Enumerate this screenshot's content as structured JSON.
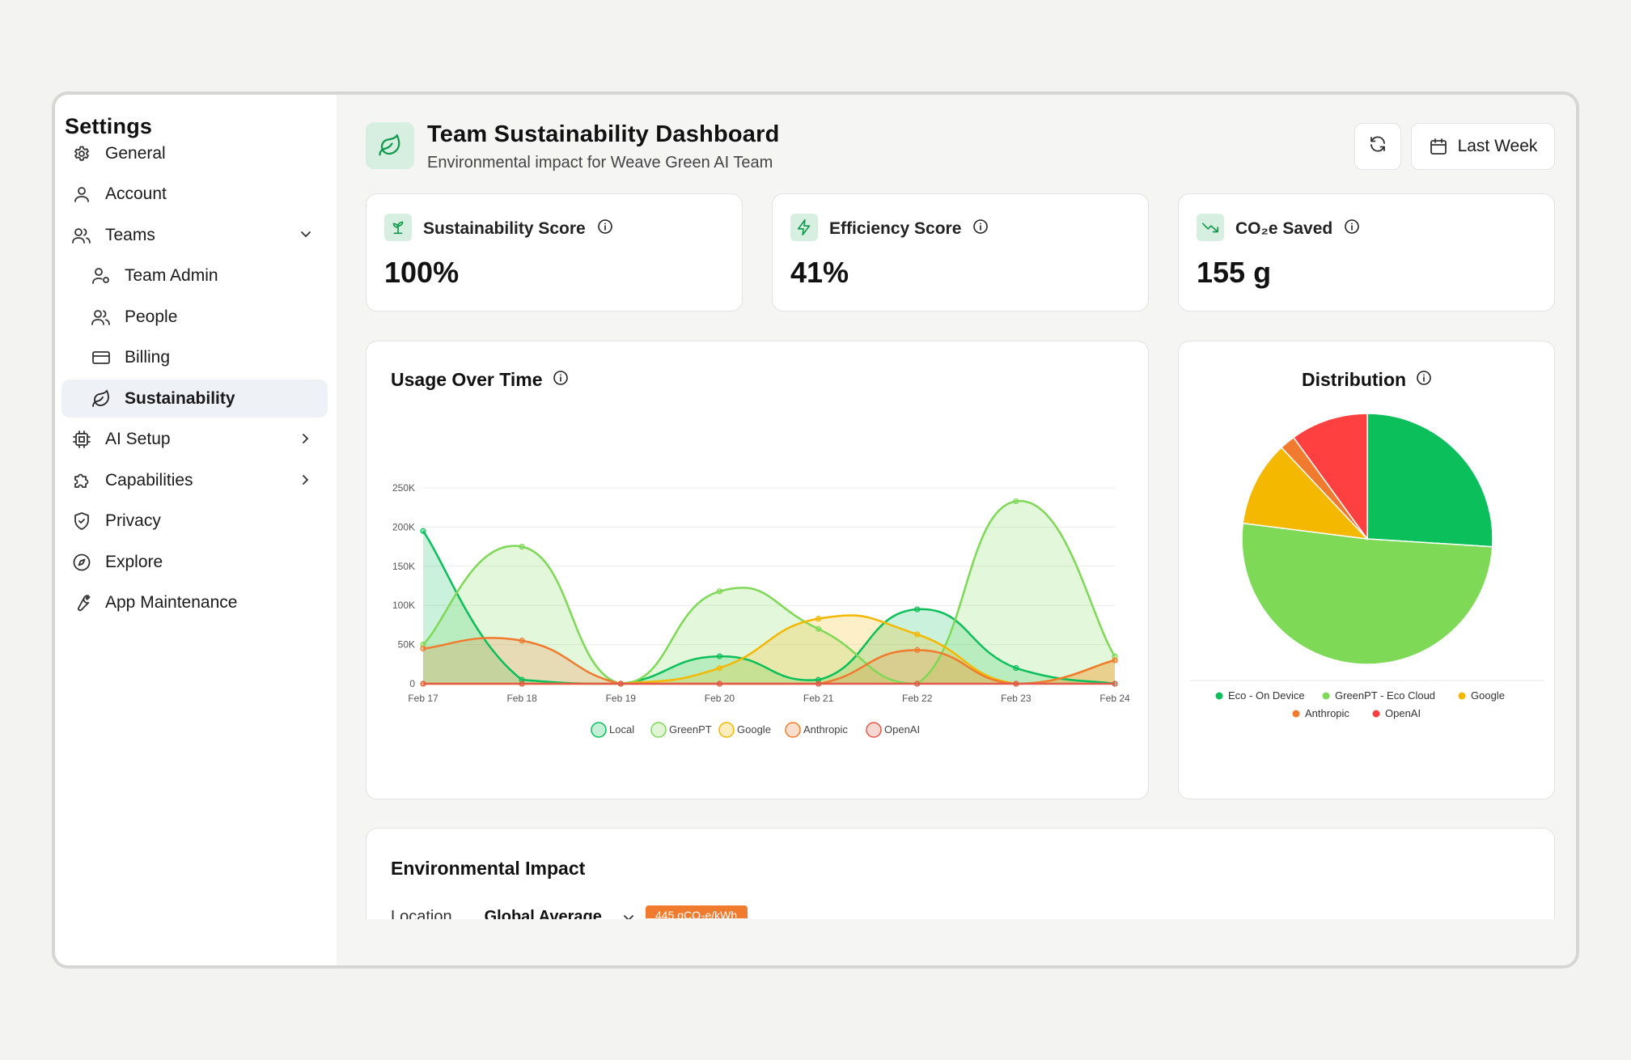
{
  "sidebar": {
    "title": "Settings",
    "items": [
      {
        "label": "General",
        "icon": "gear-icon"
      },
      {
        "label": "Account",
        "icon": "user-icon"
      },
      {
        "label": "Teams",
        "icon": "users-icon"
      },
      {
        "label": "Team Admin",
        "icon": "user-cog-icon"
      },
      {
        "label": "People",
        "icon": "users-icon"
      },
      {
        "label": "Billing",
        "icon": "credit-card-icon"
      },
      {
        "label": "Sustainability",
        "icon": "leaf-icon"
      },
      {
        "label": "AI Setup",
        "icon": "cpu-icon"
      },
      {
        "label": "Capabilities",
        "icon": "puzzle-icon"
      },
      {
        "label": "Privacy",
        "icon": "shield-icon"
      },
      {
        "label": "Explore",
        "icon": "compass-icon"
      },
      {
        "label": "App Maintenance",
        "icon": "wrench-icon"
      }
    ]
  },
  "header": {
    "title": "Team Sustainability Dashboard",
    "subtitle": "Environmental impact for Weave Green AI Team",
    "range_label": "Last Week"
  },
  "stats": [
    {
      "label": "Sustainability Score",
      "value": "100%",
      "icon": "sprout-icon"
    },
    {
      "label": "Efficiency Score",
      "value": "41%",
      "icon": "bolt-icon"
    },
    {
      "label": "CO₂e Saved",
      "value": "155 g",
      "icon": "trending-down-icon"
    }
  ],
  "usage": {
    "title": "Usage Over Time"
  },
  "distribution": {
    "title": "Distribution"
  },
  "impact": {
    "title": "Environmental Impact",
    "location_label": "Location",
    "location_value": "Global Average",
    "badge": "445 gCO₂e/kWh"
  },
  "colors": {
    "accent": "#0bbf5a",
    "greenpt": "#7ed957",
    "google": "#f5b800",
    "anthropic": "#f07b2e",
    "openai": "#ff4040"
  },
  "chart_data": [
    {
      "type": "area",
      "x": [
        "Feb 17",
        "Feb 18",
        "Feb 19",
        "Feb 20",
        "Feb 21",
        "Feb 22",
        "Feb 23",
        "Feb 24"
      ],
      "yticks": [
        "0",
        "50K",
        "100K",
        "150K",
        "200K",
        "250K"
      ],
      "ylim": [
        0,
        250000
      ],
      "grid": true,
      "legend": "bottom",
      "series": [
        {
          "name": "Local",
          "color": "#0bbf5a",
          "values": [
            195000,
            5000,
            0,
            35000,
            5000,
            95000,
            20000,
            0
          ]
        },
        {
          "name": "GreenPT",
          "color": "#7ed957",
          "values": [
            50000,
            175000,
            0,
            118000,
            70000,
            0,
            233000,
            35000
          ]
        },
        {
          "name": "Google",
          "color": "#f5b800",
          "values": [
            0,
            0,
            0,
            20000,
            83000,
            63000,
            0,
            30000
          ]
        },
        {
          "name": "Anthropic",
          "color": "#f07b2e",
          "values": [
            45000,
            55000,
            0,
            0,
            0,
            43000,
            0,
            30000
          ]
        },
        {
          "name": "OpenAI",
          "color": "#e25a4a",
          "values": [
            0,
            0,
            0,
            0,
            0,
            0,
            0,
            0
          ]
        }
      ]
    },
    {
      "type": "pie",
      "legend": "bottom",
      "slices": [
        {
          "name": "Eco - On Device",
          "value": 26,
          "color": "#0bbf5a"
        },
        {
          "name": "GreenPT - Eco Cloud",
          "value": 51,
          "color": "#7ed957"
        },
        {
          "name": "Google",
          "value": 11,
          "color": "#f5b800"
        },
        {
          "name": "Anthropic",
          "value": 2,
          "color": "#f07b2e"
        },
        {
          "name": "OpenAI",
          "value": 10,
          "color": "#ff4040"
        }
      ]
    }
  ]
}
